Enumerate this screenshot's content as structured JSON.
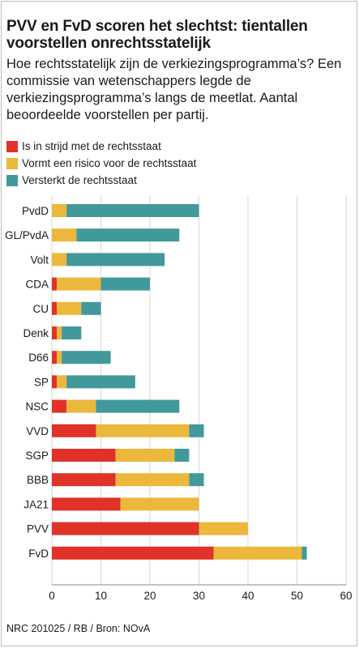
{
  "title": "PVV en FvD scoren het slechtst: tientallen voorstellen onrechtsstatelijk",
  "subtitle": "Hoe rechtsstatelijk zijn de verkiezingsprogramma’s? Een commissie van wetenschappers legde de verkiezingsprogramma’s langs de meetlat. Aantal beoordeelde voorstellen per partij.",
  "source": "NRC 201025 / RB / Bron: NOvA",
  "chart_data": {
    "type": "bar",
    "orientation": "horizontal",
    "stacked": true,
    "categories": [
      "PvdD",
      "GL/PvdA",
      "Volt",
      "CDA",
      "CU",
      "Denk",
      "D66",
      "SP",
      "NSC",
      "VVD",
      "SGP",
      "BBB",
      "JA21",
      "PVV",
      "FvD"
    ],
    "series": [
      {
        "name": "Is in strijd met de rechtsstaat",
        "color": "#e03229",
        "values": [
          0,
          0,
          0,
          1,
          1,
          1,
          1,
          1,
          3,
          9,
          13,
          13,
          14,
          30,
          33
        ]
      },
      {
        "name": "Vormt een risico voor de rechtsstaat",
        "color": "#ecb83c",
        "values": [
          3,
          5,
          3,
          9,
          5,
          1,
          1,
          2,
          6,
          19,
          12,
          15,
          16,
          10,
          18
        ]
      },
      {
        "name": "Versterkt de rechtsstaat",
        "color": "#41999c",
        "values": [
          27,
          21,
          20,
          10,
          4,
          4,
          10,
          14,
          17,
          3,
          3,
          3,
          0,
          0,
          1
        ]
      }
    ],
    "xlim": [
      0,
      60
    ],
    "xticks": [
      0,
      10,
      20,
      30,
      40,
      50,
      60
    ],
    "grid": true,
    "legend_position": "top-left"
  }
}
